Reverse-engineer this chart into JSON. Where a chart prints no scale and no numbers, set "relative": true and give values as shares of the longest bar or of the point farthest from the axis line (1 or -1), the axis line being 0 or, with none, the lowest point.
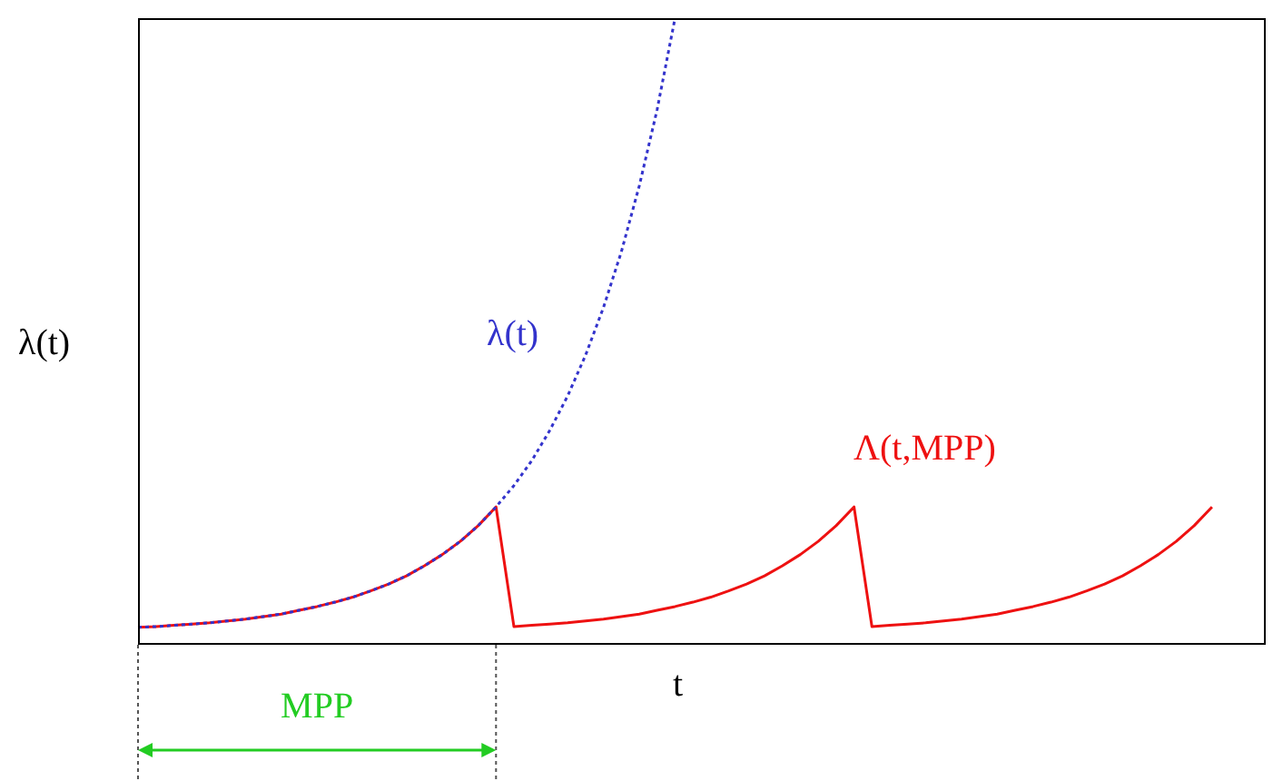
{
  "chart_data": {
    "type": "line",
    "relative": true,
    "xlabel": "t",
    "ylabel": "λ(t)",
    "annotations": [
      "MPP"
    ],
    "marker": "none",
    "categories": [
      null,
      null,
      null,
      null,
      null,
      null,
      null,
      null,
      null,
      null,
      null,
      null,
      null,
      null,
      null,
      null,
      null,
      null,
      null,
      null,
      null,
      null,
      null,
      null,
      null,
      null,
      null,
      null,
      null,
      null,
      null,
      null,
      null,
      null,
      null,
      null,
      null,
      null,
      null,
      null,
      null,
      null,
      null,
      null,
      null,
      null,
      null,
      null,
      null,
      null,
      null,
      null,
      null,
      null,
      null,
      null,
      null,
      null,
      null,
      null,
      null,
      null,
      null,
      null
    ],
    "series": [
      {
        "name": "Λ(t,MPP)",
        "color": "#ee1111",
        "line_style": "solid",
        "values": [
          0.028,
          0.029,
          0.031,
          0.033,
          0.035,
          0.038,
          0.041,
          0.045,
          0.049,
          0.055,
          0.061,
          0.068,
          0.076,
          0.086,
          0.097,
          0.11,
          0.126,
          0.144,
          0.165,
          0.19,
          0.22,
          0.029,
          0.031,
          0.033,
          0.035,
          0.038,
          0.041,
          0.045,
          0.049,
          0.055,
          0.061,
          0.068,
          0.076,
          0.086,
          0.097,
          0.11,
          0.126,
          0.144,
          0.165,
          0.19,
          0.22,
          0.029,
          0.031,
          0.033,
          0.035,
          0.038,
          0.041,
          0.045,
          0.049,
          0.055,
          0.061,
          0.068,
          0.076,
          0.086,
          0.097,
          0.11,
          0.126,
          0.144,
          0.165,
          0.19,
          0.22,
          null,
          null,
          null
        ]
      },
      {
        "name": "λ(t)",
        "color": "#3333cc",
        "line_style": "dotted",
        "values": [
          0.028,
          0.029,
          0.031,
          0.033,
          0.035,
          0.038,
          0.041,
          0.045,
          0.049,
          0.055,
          0.061,
          0.068,
          0.076,
          0.086,
          0.097,
          0.11,
          0.126,
          0.144,
          0.165,
          0.19,
          0.22,
          0.254,
          0.294,
          0.342,
          0.397,
          0.462,
          0.538,
          0.627,
          0.732,
          0.854,
          1.0,
          null,
          null,
          null,
          null,
          null,
          null,
          null,
          null,
          null,
          null,
          null,
          null,
          null,
          null,
          null,
          null,
          null,
          null,
          null,
          null,
          null,
          null,
          null,
          null,
          null,
          null,
          null,
          null,
          null,
          null,
          null,
          null,
          null
        ]
      }
    ]
  }
}
